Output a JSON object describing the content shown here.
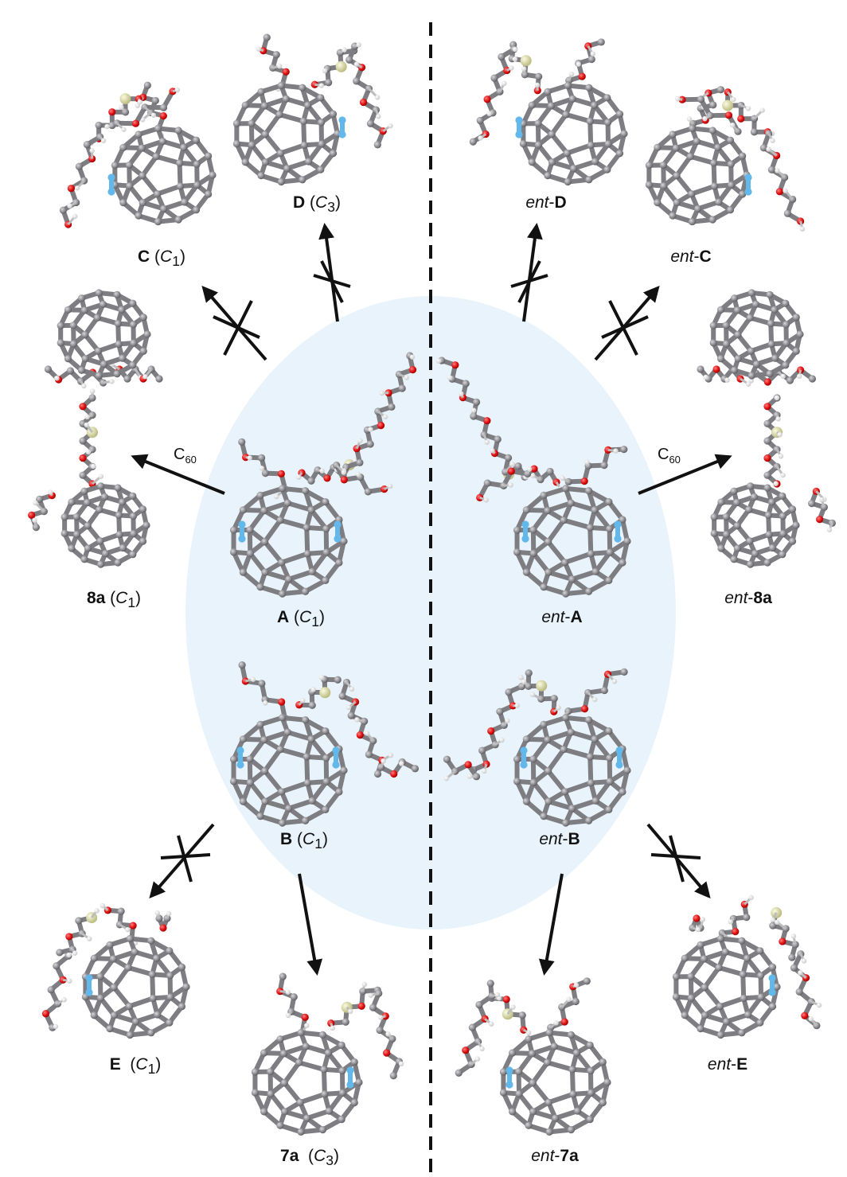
{
  "labels": {
    "C": {
      "name": "C",
      "sym": "C",
      "sub": "1"
    },
    "D": {
      "name": "D",
      "sym": "C",
      "sub": "3"
    },
    "ent_D": {
      "prefix": "ent",
      "name": "D"
    },
    "ent_C": {
      "prefix": "ent",
      "name": "C"
    },
    "8a": {
      "name": "8a",
      "sym": "C",
      "sub": "1"
    },
    "A": {
      "name": "A",
      "sym": "C",
      "sub": "1"
    },
    "ent_A": {
      "prefix": "ent",
      "name": "A"
    },
    "ent_8a": {
      "prefix": "ent",
      "name": "8a"
    },
    "B": {
      "name": "B",
      "sym": "C",
      "sub": "1"
    },
    "ent_B": {
      "prefix": "ent",
      "name": "B"
    },
    "E": {
      "name": "E",
      "sym": "C",
      "sub": "1"
    },
    "ent_E": {
      "prefix": "ent",
      "name": "E"
    },
    "7a": {
      "name": "7a",
      "sym": "C",
      "sub": "3"
    },
    "ent_7a": {
      "prefix": "ent",
      "name": "7a"
    }
  },
  "reagent": {
    "base": "C",
    "sub": "60"
  },
  "colors": {
    "carbon": "#8c8c90",
    "oxygen": "#e01010",
    "nitrogen": "#62b8ea",
    "silicon": "#d9d99a",
    "hydrogen": "#f2f2f2",
    "ellipse": "#e8f3fc",
    "arrow": "#111111"
  }
}
